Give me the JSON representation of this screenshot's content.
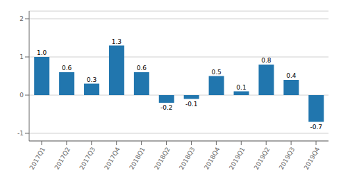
{
  "chart_data": {
    "type": "bar",
    "categories": [
      "2017Q1",
      "2017Q2",
      "2017Q3",
      "2017Q4",
      "2018Q1",
      "2018Q2",
      "2018Q3",
      "2018Q4",
      "2019Q1",
      "2019Q2",
      "2019Q3",
      "2019Q4"
    ],
    "values": [
      1.0,
      0.6,
      0.3,
      1.3,
      0.6,
      -0.2,
      -0.1,
      0.5,
      0.1,
      0.8,
      0.4,
      -0.7
    ],
    "value_labels": [
      "1.0",
      "0.6",
      "0.3",
      "1.3",
      "0.6",
      "-0.2",
      "-0.1",
      "0.5",
      "0.1",
      "0.8",
      "0.4",
      "-0.7"
    ],
    "data_labels": true,
    "color": "#2176ae",
    "ylim": [
      -1.2,
      2.2
    ],
    "yticks": [
      -1,
      0,
      1,
      2
    ],
    "grid": true
  }
}
